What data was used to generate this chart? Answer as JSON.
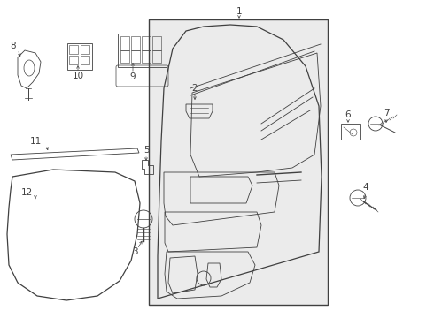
{
  "background_color": "#ffffff",
  "box_fill": "#e8e8e8",
  "line_color": "#404040",
  "fig_width": 4.9,
  "fig_height": 3.6,
  "dpi": 100
}
